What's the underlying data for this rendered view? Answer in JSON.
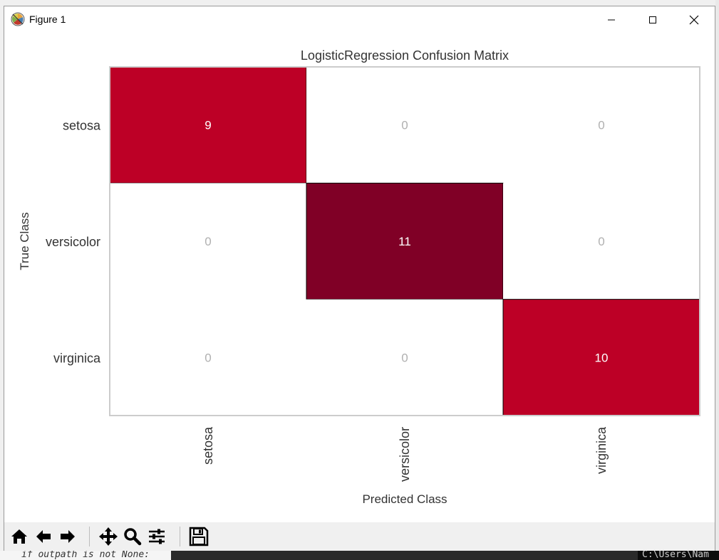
{
  "window": {
    "title": "Figure 1"
  },
  "background": {
    "code_snippet": "if outpath is not None:",
    "terminal_text": "C:\\Users\\Nam"
  },
  "toolbar": {
    "tools": [
      "home-icon",
      "back-arrow-icon",
      "forward-arrow-icon",
      "pan-icon",
      "zoom-icon",
      "configure-subplots-icon",
      "save-icon"
    ]
  },
  "colors": {
    "setosa_cell": "#bd0026",
    "dark_cell": "#800026",
    "zero_text": "#b0b0b0",
    "frame": "#cccccc"
  },
  "chart_data": {
    "type": "heatmap",
    "title": "LogisticRegression Confusion Matrix",
    "xlabel": "Predicted Class",
    "ylabel": "True Class",
    "x_categories": [
      "setosa",
      "versicolor",
      "virginica"
    ],
    "y_categories": [
      "setosa",
      "versicolor",
      "virginica"
    ],
    "values": [
      [
        9,
        0,
        0
      ],
      [
        0,
        11,
        0
      ],
      [
        0,
        0,
        10
      ]
    ],
    "grid": false,
    "colormap": "YlOrRd"
  }
}
